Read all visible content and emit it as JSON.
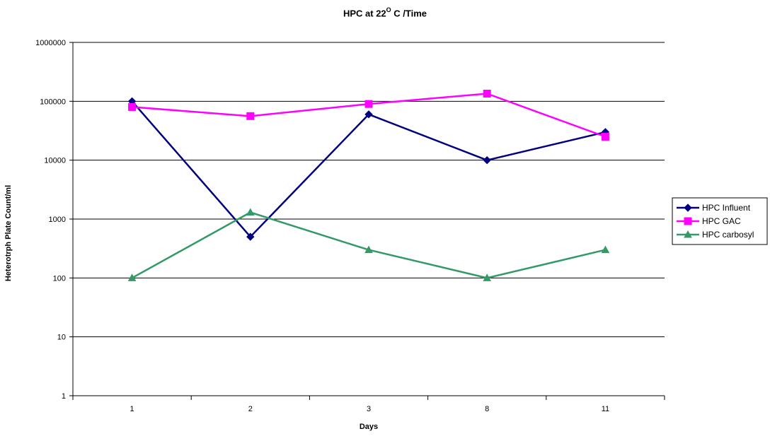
{
  "chart_data": {
    "type": "line",
    "title": {
      "prefix": "HPC at 22",
      "superscript": "O",
      "suffix": " C /Time"
    },
    "xlabel": "Days",
    "ylabel": "Heterotrph Plate Count/ml",
    "categories": [
      "1",
      "2",
      "3",
      "8",
      "11"
    ],
    "y_scale": "log",
    "ylim": [
      1,
      1000000
    ],
    "yticks": [
      "1",
      "10",
      "100",
      "1000",
      "10000",
      "100000",
      "1000000"
    ],
    "grid": "horizontal",
    "legend_position": "right",
    "series": [
      {
        "name": "HPC Influent",
        "color": "#000080",
        "marker": "diamond",
        "values": [
          100000,
          500,
          60000,
          10000,
          30000
        ]
      },
      {
        "name": "HPC GAC",
        "color": "#ff00ff",
        "marker": "square",
        "values": [
          80000,
          56000,
          90000,
          135000,
          25000
        ]
      },
      {
        "name": "HPC carbosyl",
        "color": "#339966",
        "marker": "triangle",
        "values": [
          100,
          1300,
          300,
          100,
          300
        ]
      }
    ]
  }
}
